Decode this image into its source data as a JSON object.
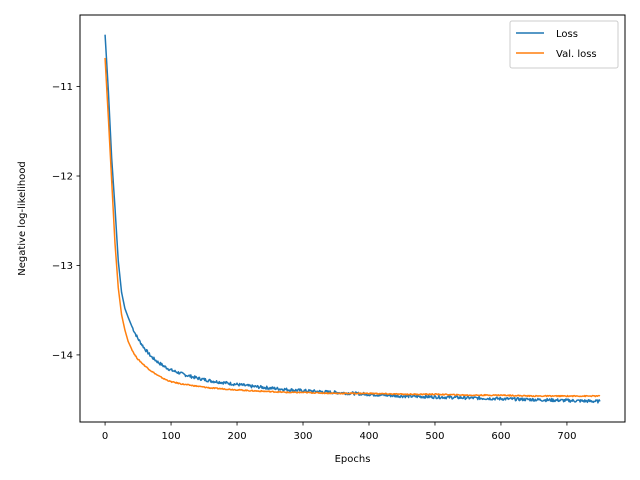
{
  "chart_data": {
    "type": "line",
    "title": "",
    "xlabel": "Epochs",
    "ylabel": "Negative log-likelihood",
    "xlim": [
      -38,
      788
    ],
    "ylim": [
      -14.75,
      -10.2
    ],
    "xticks": [
      0,
      100,
      200,
      300,
      400,
      500,
      600,
      700
    ],
    "xtick_labels": [
      "0",
      "100",
      "200",
      "300",
      "400",
      "500",
      "600",
      "700"
    ],
    "yticks": [
      -11,
      -12,
      -13,
      -14
    ],
    "ytick_labels": [
      "−11",
      "−12",
      "−13",
      "−14"
    ],
    "grid": false,
    "legend_position": "top-right",
    "series": [
      {
        "name": "Loss",
        "color": "#1f77b4",
        "x": [
          0,
          5,
          10,
          15,
          20,
          25,
          30,
          35,
          40,
          45,
          50,
          60,
          70,
          80,
          90,
          100,
          120,
          140,
          160,
          180,
          200,
          220,
          250,
          280,
          300,
          350,
          400,
          450,
          500,
          550,
          600,
          650,
          700,
          750
        ],
        "values": [
          -10.42,
          -11.05,
          -11.8,
          -12.35,
          -12.95,
          -13.3,
          -13.48,
          -13.58,
          -13.67,
          -13.75,
          -13.82,
          -13.93,
          -14.02,
          -14.08,
          -14.13,
          -14.17,
          -14.22,
          -14.26,
          -14.29,
          -14.31,
          -14.33,
          -14.35,
          -14.37,
          -14.39,
          -14.4,
          -14.42,
          -14.44,
          -14.46,
          -14.47,
          -14.48,
          -14.49,
          -14.5,
          -14.51,
          -14.52
        ]
      },
      {
        "name": "Val. loss",
        "color": "#ff7f0e",
        "x": [
          0,
          5,
          10,
          15,
          20,
          25,
          30,
          35,
          40,
          45,
          50,
          60,
          70,
          80,
          90,
          100,
          120,
          140,
          160,
          180,
          200,
          220,
          250,
          280,
          300,
          350,
          400,
          450,
          500,
          550,
          600,
          650,
          700,
          750
        ],
        "values": [
          -10.68,
          -11.35,
          -12.05,
          -12.75,
          -13.25,
          -13.55,
          -13.72,
          -13.85,
          -13.93,
          -14.0,
          -14.05,
          -14.12,
          -14.18,
          -14.23,
          -14.27,
          -14.3,
          -14.33,
          -14.35,
          -14.37,
          -14.38,
          -14.39,
          -14.4,
          -14.41,
          -14.42,
          -14.42,
          -14.43,
          -14.43,
          -14.44,
          -14.44,
          -14.45,
          -14.45,
          -14.46,
          -14.46,
          -14.46
        ]
      }
    ]
  }
}
